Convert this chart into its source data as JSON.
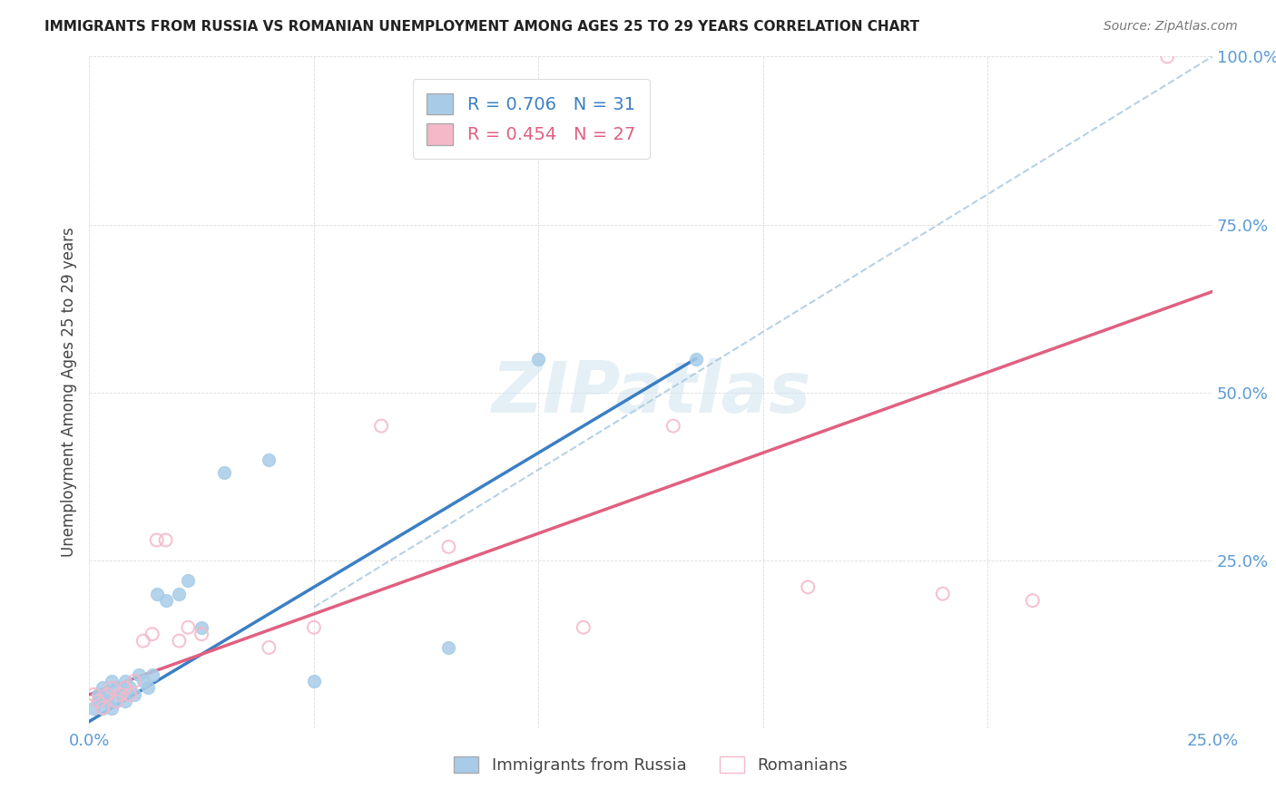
{
  "title": "IMMIGRANTS FROM RUSSIA VS ROMANIAN UNEMPLOYMENT AMONG AGES 25 TO 29 YEARS CORRELATION CHART",
  "source": "Source: ZipAtlas.com",
  "ylabel": "Unemployment Among Ages 25 to 29 years",
  "xlim": [
    0.0,
    0.25
  ],
  "ylim": [
    0.0,
    1.0
  ],
  "xticks": [
    0.0,
    0.05,
    0.1,
    0.15,
    0.2,
    0.25
  ],
  "yticks": [
    0.0,
    0.25,
    0.5,
    0.75,
    1.0
  ],
  "blue_R": 0.706,
  "blue_N": 31,
  "pink_R": 0.454,
  "pink_N": 27,
  "blue_fill_color": "#a8cce8",
  "pink_fill_color": "#f5b8c8",
  "blue_line_color": "#3b7fc4",
  "pink_line_color": "#e06080",
  "dashed_line_color": "#b0cce0",
  "tick_color": "#5b9bd5",
  "background_color": "#ffffff",
  "watermark": "ZIPatlas",
  "blue_scatter_x": [
    0.001,
    0.002,
    0.002,
    0.003,
    0.003,
    0.004,
    0.004,
    0.005,
    0.005,
    0.006,
    0.006,
    0.007,
    0.008,
    0.008,
    0.009,
    0.01,
    0.011,
    0.012,
    0.013,
    0.014,
    0.015,
    0.017,
    0.02,
    0.022,
    0.025,
    0.03,
    0.04,
    0.05,
    0.08,
    0.1,
    0.135
  ],
  "blue_scatter_y": [
    0.03,
    0.04,
    0.05,
    0.03,
    0.06,
    0.04,
    0.05,
    0.03,
    0.07,
    0.04,
    0.06,
    0.05,
    0.04,
    0.07,
    0.06,
    0.05,
    0.08,
    0.07,
    0.06,
    0.08,
    0.2,
    0.19,
    0.2,
    0.22,
    0.15,
    0.38,
    0.4,
    0.07,
    0.12,
    0.55,
    0.55
  ],
  "pink_scatter_x": [
    0.001,
    0.002,
    0.003,
    0.004,
    0.005,
    0.006,
    0.007,
    0.008,
    0.009,
    0.01,
    0.012,
    0.014,
    0.015,
    0.017,
    0.02,
    0.022,
    0.025,
    0.04,
    0.05,
    0.065,
    0.08,
    0.11,
    0.13,
    0.16,
    0.19,
    0.21,
    0.24
  ],
  "pink_scatter_y": [
    0.05,
    0.04,
    0.03,
    0.05,
    0.06,
    0.04,
    0.05,
    0.06,
    0.05,
    0.07,
    0.13,
    0.14,
    0.28,
    0.28,
    0.13,
    0.15,
    0.14,
    0.12,
    0.15,
    0.45,
    0.27,
    0.15,
    0.45,
    0.21,
    0.2,
    0.19,
    1.0
  ],
  "blue_line_x": [
    0.0,
    0.135
  ],
  "blue_line_y": [
    0.01,
    0.55
  ],
  "pink_line_x": [
    0.0,
    0.25
  ],
  "pink_line_y": [
    0.05,
    0.65
  ],
  "dashed_line_x": [
    0.05,
    0.25
  ],
  "dashed_line_y": [
    0.18,
    1.0
  ]
}
